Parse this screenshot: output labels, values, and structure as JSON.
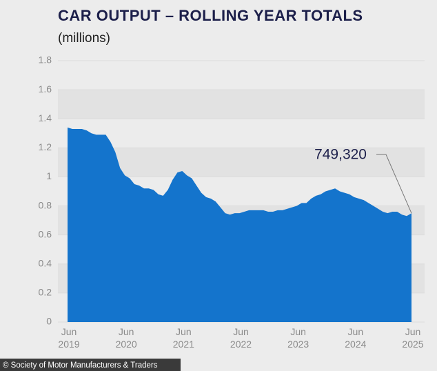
{
  "chart_data": {
    "type": "area",
    "title": "CAR OUTPUT – ROLLING YEAR TOTALS",
    "subtitle": "(millions)",
    "categories": [
      "Jun 2019",
      null,
      null,
      null,
      null,
      null,
      null,
      null,
      null,
      null,
      null,
      null,
      "Jun 2020",
      null,
      null,
      null,
      null,
      null,
      null,
      null,
      null,
      null,
      null,
      null,
      "Jun 2021",
      null,
      null,
      null,
      null,
      null,
      null,
      null,
      null,
      null,
      null,
      null,
      "Jun 2022",
      null,
      null,
      null,
      null,
      null,
      null,
      null,
      null,
      null,
      null,
      null,
      "Jun 2023",
      null,
      null,
      null,
      null,
      null,
      null,
      null,
      null,
      null,
      null,
      null,
      "Jun 2024",
      null,
      null,
      null,
      null,
      null,
      null,
      null,
      null,
      null,
      null,
      null,
      "Jun 2025"
    ],
    "values": [
      1.34,
      1.33,
      1.33,
      1.33,
      1.32,
      1.3,
      1.29,
      1.29,
      1.29,
      1.24,
      1.17,
      1.06,
      1.01,
      0.99,
      0.95,
      0.94,
      0.92,
      0.92,
      0.91,
      0.88,
      0.87,
      0.91,
      0.98,
      1.03,
      1.04,
      1.01,
      0.99,
      0.94,
      0.89,
      0.86,
      0.85,
      0.83,
      0.79,
      0.75,
      0.74,
      0.75,
      0.75,
      0.76,
      0.77,
      0.77,
      0.77,
      0.77,
      0.76,
      0.76,
      0.77,
      0.77,
      0.78,
      0.79,
      0.8,
      0.82,
      0.82,
      0.85,
      0.87,
      0.88,
      0.9,
      0.91,
      0.92,
      0.9,
      0.89,
      0.88,
      0.86,
      0.85,
      0.84,
      0.82,
      0.8,
      0.78,
      0.76,
      0.75,
      0.76,
      0.76,
      0.74,
      0.73,
      0.74932
    ],
    "color": "#1474cc",
    "annotation": "749,320",
    "ylim": [
      0,
      1.8
    ],
    "yticks": [
      0,
      0.2,
      0.4,
      0.6,
      0.8,
      1,
      1.2,
      1.4,
      1.6,
      1.8
    ],
    "source": "© Society of Motor Manufacturers & Traders"
  }
}
